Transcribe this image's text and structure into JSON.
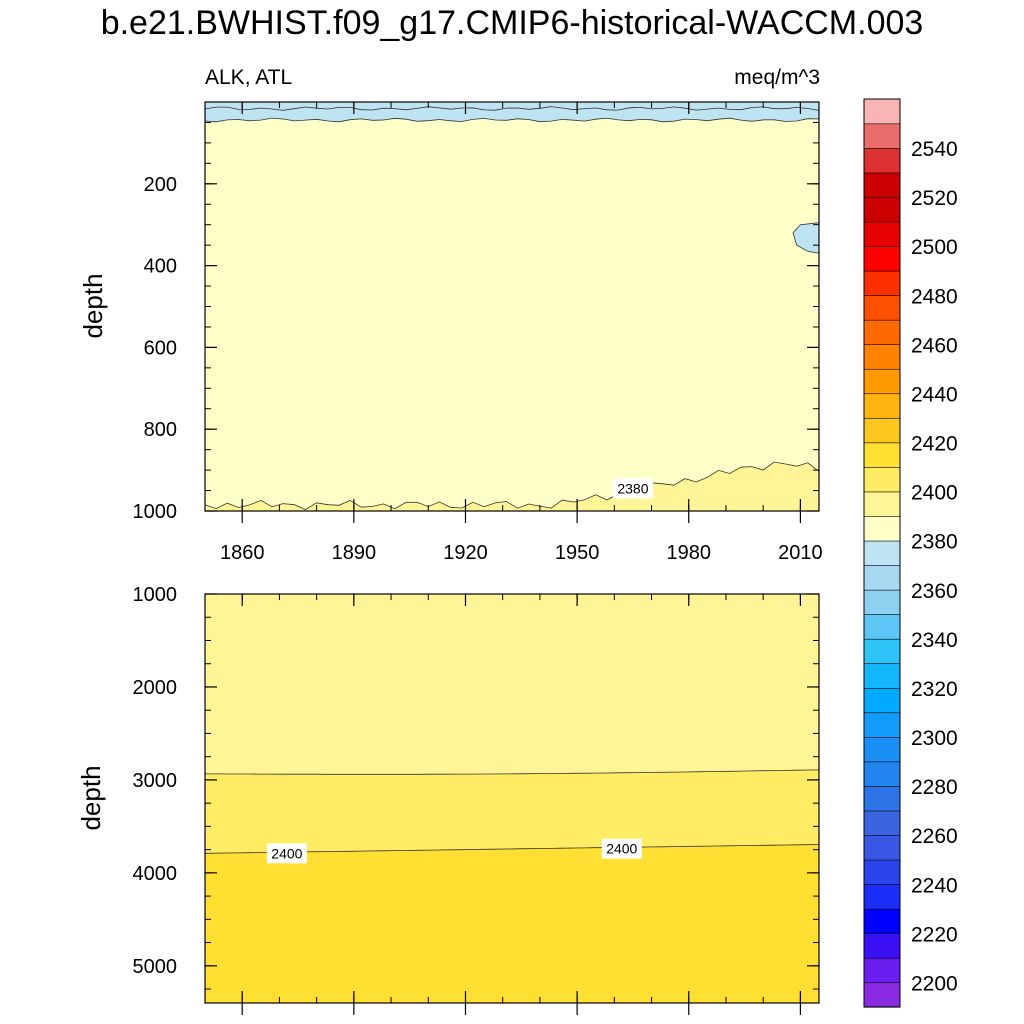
{
  "title": "b.e21.BWHIST.f09_g17.CMIP6-historical-WACCM.003",
  "variable_label": "ALK, ATL",
  "units_label": "meq/m^3",
  "chart_data": {
    "type": "heatmap",
    "subtype": "filled-contour",
    "title": "b.e21.BWHIST.f09_g17.CMIP6-historical-WACCM.003",
    "variable": "ALK, ATL",
    "units": "meq/m^3",
    "x_axis": {
      "range": [
        1850,
        2015
      ],
      "ticks": [
        1860,
        1890,
        1920,
        1950,
        1980,
        2010
      ],
      "tick_labels": [
        "1860",
        "1890",
        "1920",
        "1950",
        "1980",
        "2010"
      ]
    },
    "panels": [
      {
        "name": "upper",
        "ylabel": "depth",
        "ylim": [
          0,
          1000
        ],
        "reversed": true,
        "yticks": [
          200,
          400,
          600,
          800,
          1000
        ],
        "ytick_labels": [
          "200",
          "400",
          "600",
          "800",
          "1000"
        ],
        "regions": [
          {
            "band": "2360-2370",
            "color": "#bee3f2",
            "depth_range": [
              0,
              50
            ],
            "note": "surface layer"
          },
          {
            "band": "2370-2380",
            "color": "#ffffc8",
            "depth_range": [
              50,
              930
            ]
          },
          {
            "band": "2380-2390",
            "color": "#fff596",
            "depth_range": [
              875,
              1000
            ],
            "note": "deep layer, shoaling after 1950"
          },
          {
            "band": "2360-2370",
            "color": "#bee3f2",
            "depth_range": [
              290,
              370
            ],
            "x_range": [
              2008,
              2015
            ],
            "note": "isolated patch"
          }
        ],
        "contour_labels": [
          {
            "text": "2380",
            "year": 1965,
            "depth": 945
          }
        ]
      },
      {
        "name": "lower",
        "ylabel": "depth",
        "ylim": [
          1000,
          5400
        ],
        "reversed": true,
        "yticks": [
          1000,
          2000,
          3000,
          4000,
          5000
        ],
        "ytick_labels": [
          "1000",
          "2000",
          "3000",
          "4000",
          "5000"
        ],
        "regions": [
          {
            "band": "2380-2390",
            "color": "#fff596",
            "depth_range": [
              1000,
              2900
            ]
          },
          {
            "band": "2390-2400",
            "color": "#ffeb64",
            "depth_range": [
              2900,
              3700
            ]
          },
          {
            "band": "2400-2410",
            "color": "#ffe032",
            "depth_range": [
              3700,
              5400
            ]
          }
        ],
        "contour_labels": [
          {
            "text": "2400",
            "year": 1872,
            "depth": 3790
          },
          {
            "text": "2400",
            "year": 1962,
            "depth": 3740
          }
        ]
      }
    ],
    "colorbar": {
      "labels": [
        "2200",
        "2220",
        "2240",
        "2260",
        "2280",
        "2300",
        "2320",
        "2340",
        "2360",
        "2380",
        "2400",
        "2420",
        "2440",
        "2460",
        "2480",
        "2500",
        "2520",
        "2540"
      ],
      "min": 2190,
      "max": 2560,
      "step": 10,
      "colors": [
        "#8a2be2",
        "#6a1ff0",
        "#3c10f5",
        "#0000ff",
        "#1a2ef5",
        "#2a44ec",
        "#3a56e4",
        "#3a64e0",
        "#2f74e6",
        "#2284ee",
        "#1a90f7",
        "#129cfb",
        "#00aaff",
        "#12b6fb",
        "#2ec4f7",
        "#5ec6f4",
        "#8ed0f0",
        "#a6d8f0",
        "#bee3f2",
        "#ffffc8",
        "#fff596",
        "#ffeb64",
        "#ffe032",
        "#fcc820",
        "#ffb40f",
        "#ff9b00",
        "#ff8200",
        "#ff6a00",
        "#ff5000",
        "#ff3000",
        "#ff0000",
        "#e60000",
        "#cd0000",
        "#cd0000",
        "#dc3232",
        "#eb6e6e",
        "#fab4b4"
      ]
    }
  }
}
